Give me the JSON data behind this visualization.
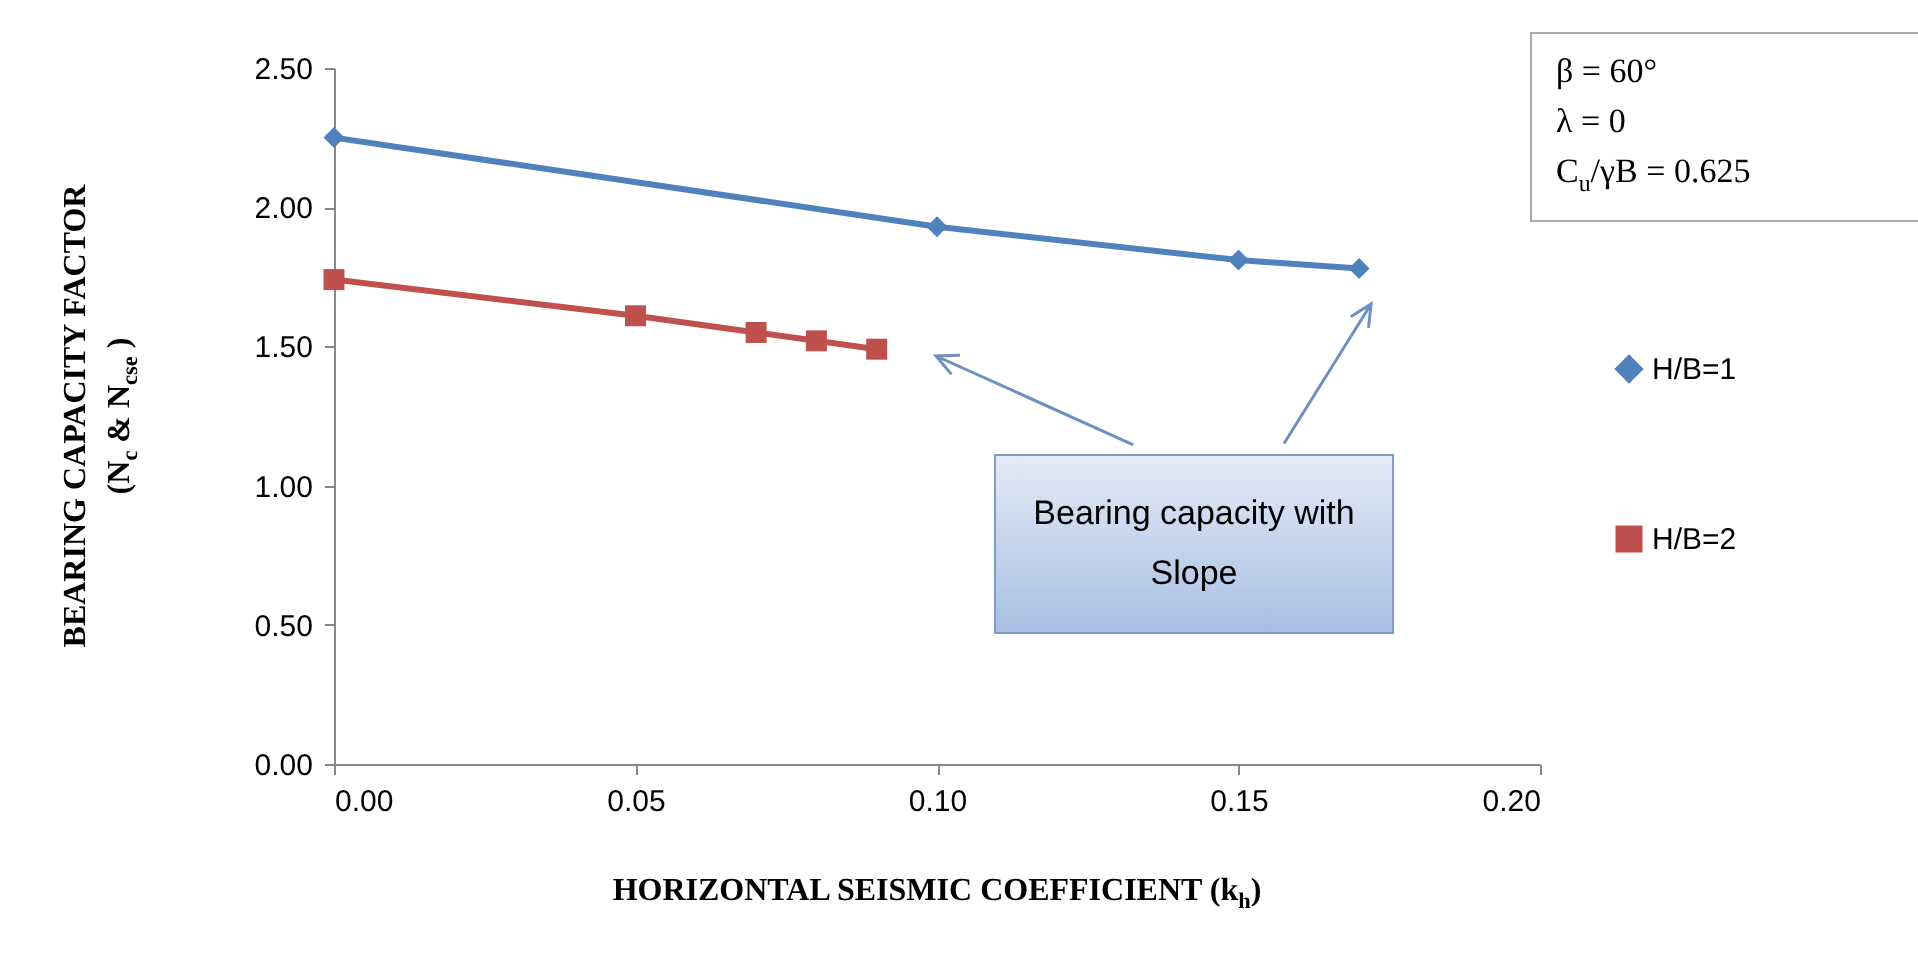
{
  "chart_data": {
    "type": "line",
    "xlabel": "HORIZONTAL  SEISMIC  COEFFICIENT (k$_{h}$)",
    "ylabel": "BEARING CAPACITY  FACTOR\n(N$_{c}$ & N$_{cse}$ )",
    "series": [
      {
        "name": "H/B=1",
        "color": "#4f81bd",
        "marker": "diamond",
        "x": [
          0,
          0.1,
          0.15,
          0.17
        ],
        "values": [
          2.25,
          1.93,
          1.81,
          1.78
        ]
      },
      {
        "name": "H/B=2",
        "color": "#c0504d",
        "marker": "square",
        "x": [
          0,
          0.05,
          0.07,
          0.08,
          0.09
        ],
        "values": [
          1.74,
          1.61,
          1.55,
          1.52,
          1.49
        ]
      }
    ],
    "xlim": [
      0,
      0.2
    ],
    "xticks": [
      {
        "value": 0,
        "label": "0.00"
      },
      {
        "value": 0.05,
        "label": "0.05"
      },
      {
        "value": 0.1,
        "label": "0.10"
      },
      {
        "value": 0.15,
        "label": "0.15"
      },
      {
        "value": 0.2,
        "label": "0.20"
      }
    ],
    "ylim": [
      0,
      2.5
    ],
    "yticks": [
      {
        "value": 0,
        "label": "0.00"
      },
      {
        "value": 0.5,
        "label": "0.50"
      },
      {
        "value": 1,
        "label": "1.00"
      },
      {
        "value": 1.5,
        "label": "1.50"
      },
      {
        "value": 2,
        "label": "2.00"
      },
      {
        "value": 2.5,
        "label": "2.50"
      }
    ],
    "legend": "right",
    "grid": false,
    "annotations": [
      "β = 60°",
      "λ  = 0",
      "C$_{u}$/γB  = 0.625",
      "Bearing capacity with Slope"
    ]
  }
}
